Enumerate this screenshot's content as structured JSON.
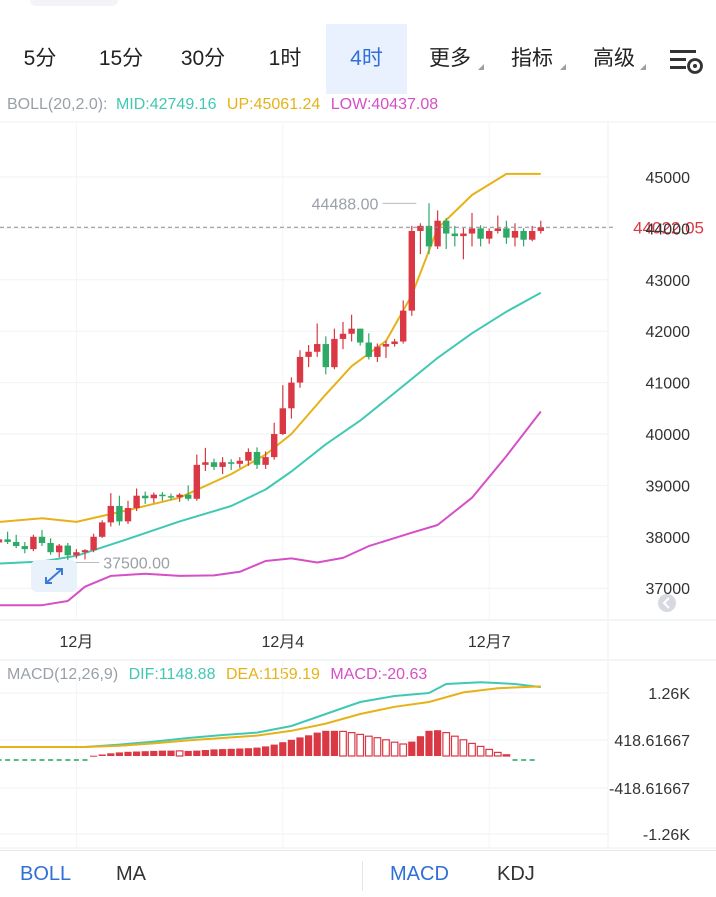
{
  "tabs": [
    {
      "label": "5分",
      "dropdown": false
    },
    {
      "label": "15分",
      "dropdown": false
    },
    {
      "label": "30分",
      "dropdown": false
    },
    {
      "label": "1时",
      "dropdown": false
    },
    {
      "label": "4时",
      "dropdown": false,
      "active": true
    },
    {
      "label": "更多",
      "dropdown": true
    },
    {
      "label": "指标",
      "dropdown": true
    },
    {
      "label": "高级",
      "dropdown": true
    }
  ],
  "settings_icon": "chart-settings-icon",
  "boll_header": {
    "name": "BOLL(20,2.0):",
    "mid": "MID:42749.16",
    "up": "UP:45061.24",
    "low": "LOW:40437.08"
  },
  "macd_header": {
    "name": "MACD(12,26,9)",
    "dif": "DIF:1148.88",
    "dea": "DEA:1159.19",
    "macd": "MACD:-20.63"
  },
  "colors": {
    "up": "#d93844",
    "down": "#2eaa67",
    "mid": "#41c8b4",
    "upper": "#e6b218",
    "lower": "#d64fc6",
    "dif": "#41c8b4",
    "dea": "#e6b218",
    "accent": "#2f6fd6",
    "price_label": "#d93844"
  },
  "bottom_tabs": [
    {
      "label": "BOLL",
      "active": true
    },
    {
      "label": "MA",
      "active": false
    },
    {
      "label": "MACD",
      "active": true
    },
    {
      "label": "KDJ",
      "active": false
    }
  ],
  "chart_data": [
    {
      "type": "candlestick",
      "y_ticks": [
        "45000",
        "44000",
        "43000",
        "42000",
        "41000",
        "40000",
        "39000",
        "38000",
        "37000"
      ],
      "ylim": [
        36500,
        45700
      ],
      "x_ticks": [
        {
          "label": "12月",
          "at": 9
        },
        {
          "label": "12月4",
          "at": 33
        },
        {
          "label": "12月7",
          "at": 57
        }
      ],
      "current_price": {
        "value": 44022.05,
        "label": "44022.05"
      },
      "high_marker": {
        "value": 44488,
        "label": "44488.00",
        "at": 49
      },
      "low_marker": {
        "value": 37500,
        "label": "37500.00",
        "at": 7
      },
      "candles": [
        [
          37890,
          37970,
          37820,
          37950
        ],
        [
          37950,
          38100,
          37860,
          37900
        ],
        [
          37900,
          38040,
          37780,
          37820
        ],
        [
          37820,
          37900,
          37680,
          37760
        ],
        [
          37760,
          38040,
          37720,
          38000
        ],
        [
          38000,
          38130,
          37820,
          37880
        ],
        [
          37880,
          37970,
          37650,
          37700
        ],
        [
          37700,
          37860,
          37600,
          37830
        ],
        [
          37830,
          37880,
          37500,
          37640
        ],
        [
          37640,
          37760,
          37580,
          37700
        ],
        [
          37700,
          37760,
          37560,
          37740
        ],
        [
          37740,
          38060,
          37700,
          38000
        ],
        [
          38000,
          38320,
          37980,
          38280
        ],
        [
          38280,
          38850,
          38200,
          38600
        ],
        [
          38600,
          38800,
          38220,
          38300
        ],
        [
          38300,
          38700,
          38250,
          38560
        ],
        [
          38560,
          38940,
          38500,
          38800
        ],
        [
          38800,
          38880,
          38640,
          38750
        ],
        [
          38750,
          38860,
          38660,
          38820
        ],
        [
          38820,
          38870,
          38700,
          38790
        ],
        [
          38790,
          38840,
          38720,
          38770
        ],
        [
          38770,
          38850,
          38680,
          38820
        ],
        [
          38820,
          39000,
          38700,
          38740
        ],
        [
          38740,
          39600,
          38700,
          39400
        ],
        [
          39400,
          39730,
          39280,
          39450
        ],
        [
          39450,
          39520,
          39300,
          39360
        ],
        [
          39360,
          39550,
          39220,
          39450
        ],
        [
          39450,
          39510,
          39300,
          39420
        ],
        [
          39420,
          39550,
          39340,
          39480
        ],
        [
          39480,
          39720,
          39380,
          39650
        ],
        [
          39650,
          39740,
          39320,
          39400
        ],
        [
          39400,
          39660,
          39320,
          39550
        ],
        [
          39550,
          40220,
          39500,
          40000
        ],
        [
          40000,
          40950,
          39980,
          40500
        ],
        [
          40500,
          41100,
          40300,
          41000
        ],
        [
          41000,
          41630,
          40900,
          41500
        ],
        [
          41500,
          41730,
          41300,
          41600
        ],
        [
          41600,
          42150,
          41500,
          41750
        ],
        [
          41750,
          41900,
          41160,
          41300
        ],
        [
          41300,
          42050,
          41260,
          41850
        ],
        [
          41850,
          42180,
          41650,
          41950
        ],
        [
          41950,
          42320,
          41800,
          42050
        ],
        [
          42050,
          42050,
          41720,
          41780
        ],
        [
          41780,
          41960,
          41450,
          41500
        ],
        [
          41500,
          41760,
          41400,
          41700
        ],
        [
          41700,
          41820,
          41480,
          41750
        ],
        [
          41750,
          41850,
          41700,
          41800
        ],
        [
          41800,
          42600,
          41760,
          42400
        ],
        [
          42400,
          44050,
          42300,
          43950
        ],
        [
          43950,
          44100,
          43500,
          44050
        ],
        [
          44050,
          44488,
          43500,
          43650
        ],
        [
          43650,
          44350,
          43600,
          44150
        ],
        [
          44150,
          44200,
          43600,
          43900
        ],
        [
          43900,
          44050,
          43650,
          43850
        ],
        [
          43850,
          44010,
          43400,
          43900
        ],
        [
          43900,
          44300,
          43650,
          44000
        ],
        [
          44000,
          44060,
          43650,
          43800
        ],
        [
          43800,
          44000,
          43700,
          43950
        ],
        [
          43950,
          44250,
          43900,
          44000
        ],
        [
          44000,
          44150,
          43700,
          43820
        ],
        [
          43820,
          44100,
          43650,
          43950
        ],
        [
          43950,
          44000,
          43650,
          43780
        ],
        [
          43780,
          44050,
          43750,
          43950
        ],
        [
          43950,
          44150,
          43900,
          44022.05
        ]
      ],
      "series": [
        {
          "name": "MID",
          "values": [
            [
              0,
              37480
            ],
            [
              5,
              37520
            ],
            [
              9,
              37630
            ],
            [
              15,
              37960
            ],
            [
              21,
              38300
            ],
            [
              27,
              38600
            ],
            [
              31,
              38920
            ],
            [
              34,
              39270
            ],
            [
              38,
              39800
            ],
            [
              42,
              40260
            ],
            [
              46,
              40800
            ],
            [
              51,
              41480
            ],
            [
              55,
              41960
            ],
            [
              59,
              42380
            ],
            [
              63,
              42749.16
            ]
          ]
        },
        {
          "name": "UP",
          "values": [
            [
              0,
              38290
            ],
            [
              5,
              38360
            ],
            [
              9,
              38290
            ],
            [
              15,
              38520
            ],
            [
              21,
              38760
            ],
            [
              27,
              39220
            ],
            [
              31,
              39600
            ],
            [
              34,
              40000
            ],
            [
              38,
              40770
            ],
            [
              41,
              41320
            ],
            [
              45,
              41810
            ],
            [
              48,
              42700
            ],
            [
              51,
              44000
            ],
            [
              55,
              44650
            ],
            [
              59,
              45061
            ],
            [
              63,
              45061.24
            ]
          ]
        },
        {
          "name": "LOW",
          "values": [
            [
              0,
              36670
            ],
            [
              5,
              36670
            ],
            [
              8,
              36750
            ],
            [
              10,
              37030
            ],
            [
              13,
              37240
            ],
            [
              17,
              37280
            ],
            [
              21,
              37240
            ],
            [
              25,
              37250
            ],
            [
              28,
              37320
            ],
            [
              31,
              37530
            ],
            [
              34,
              37580
            ],
            [
              37,
              37500
            ],
            [
              40,
              37590
            ],
            [
              43,
              37820
            ],
            [
              48,
              38080
            ],
            [
              51,
              38230
            ],
            [
              55,
              38760
            ],
            [
              59,
              39570
            ],
            [
              63,
              40437.08
            ]
          ]
        }
      ]
    },
    {
      "type": "bar+line",
      "title": "MACD",
      "y_ticks": [
        "1.26K",
        "418.61667",
        "-418.61667",
        "-1.26K"
      ],
      "ylim": [
        -1400,
        1400
      ],
      "histogram": [
        -25,
        -25,
        -25,
        -25,
        -25,
        -25,
        -25,
        -25,
        -25,
        -25,
        -15,
        5,
        25,
        45,
        60,
        70,
        75,
        80,
        85,
        90,
        90,
        85,
        85,
        90,
        100,
        110,
        115,
        120,
        125,
        130,
        140,
        160,
        190,
        230,
        270,
        310,
        345,
        390,
        420,
        420,
        410,
        390,
        360,
        330,
        305,
        270,
        230,
        200,
        240,
        330,
        420,
        430,
        390,
        330,
        270,
        210,
        160,
        110,
        60,
        20,
        -10,
        -20,
        -20.63
      ],
      "series": [
        {
          "name": "DIF",
          "values": [
            [
              0,
              150
            ],
            [
              10,
              150
            ],
            [
              14,
              190
            ],
            [
              18,
              240
            ],
            [
              22,
              300
            ],
            [
              26,
              350
            ],
            [
              30,
              390
            ],
            [
              34,
              500
            ],
            [
              38,
              700
            ],
            [
              42,
              900
            ],
            [
              46,
              1000
            ],
            [
              50,
              1050
            ],
            [
              52,
              1200
            ],
            [
              56,
              1230
            ],
            [
              60,
              1200
            ],
            [
              63,
              1148.88
            ]
          ]
        },
        {
          "name": "DEA",
          "values": [
            [
              0,
              150
            ],
            [
              10,
              150
            ],
            [
              14,
              170
            ],
            [
              18,
              210
            ],
            [
              22,
              260
            ],
            [
              26,
              300
            ],
            [
              30,
              340
            ],
            [
              34,
              420
            ],
            [
              38,
              540
            ],
            [
              42,
              700
            ],
            [
              46,
              820
            ],
            [
              50,
              900
            ],
            [
              54,
              1060
            ],
            [
              58,
              1130
            ],
            [
              63,
              1159.19
            ]
          ]
        }
      ]
    }
  ]
}
